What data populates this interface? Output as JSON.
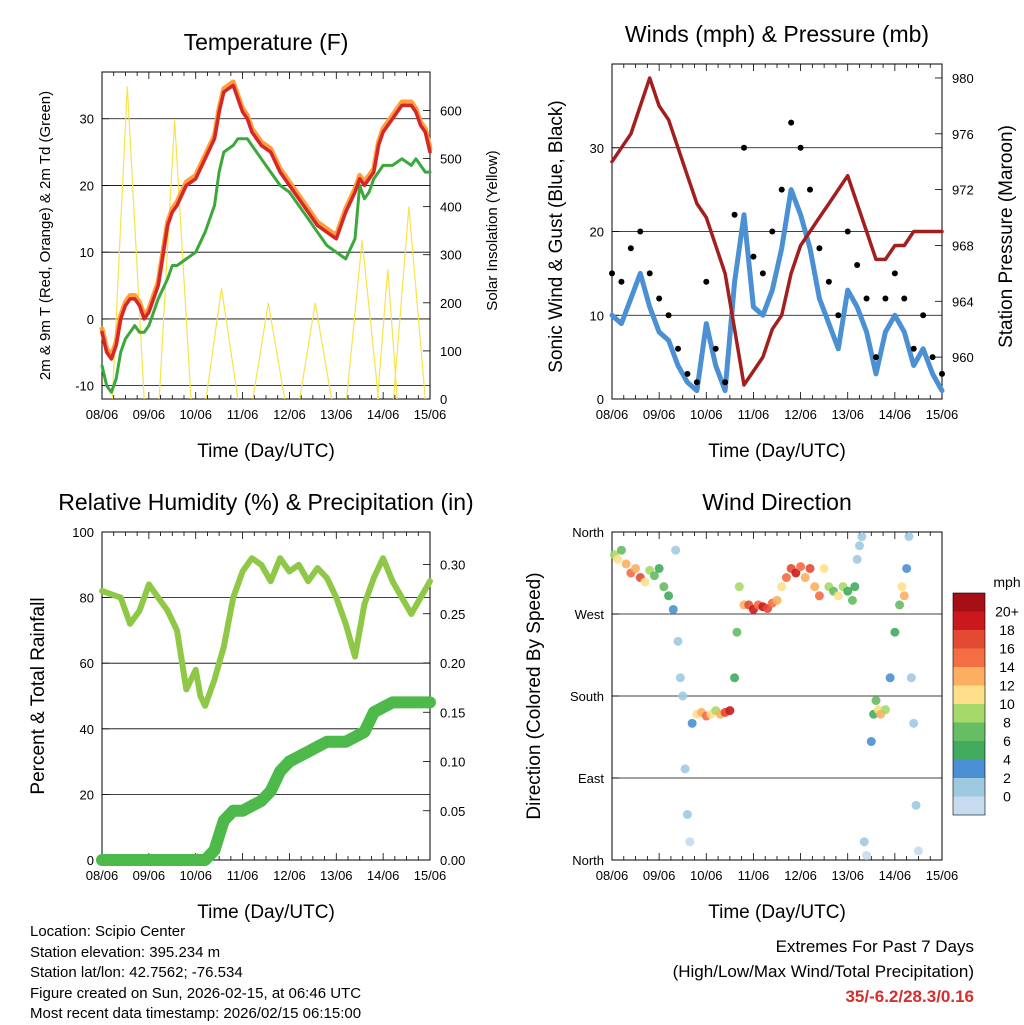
{
  "x_tick_labels": [
    "08/06",
    "09/06",
    "10/06",
    "11/06",
    "12/06",
    "13/06",
    "14/06",
    "15/06"
  ],
  "x_axis_label": "Time (Day/UTC)",
  "colors": {
    "temp_red": "#d62728",
    "temp_orange": "#ff9e3a",
    "dewpoint_green": "#3aa83a",
    "solar_yellow": "#f7e34a",
    "gust_black": "#000000",
    "wind_blue": "#4a90d2",
    "pressure_maroon": "#a31f1f",
    "rh_lightgreen": "#8fc846",
    "precip_green": "#4cb94a"
  },
  "chart_data": [
    {
      "id": "temperature",
      "type": "line",
      "title": "Temperature (F)",
      "xlabel": "Time (Day/UTC)",
      "ylabel": "2m & 9m T (Red, Orange) & 2m Td (Green)",
      "ylabel_right": "Solar Insolation (Yellow)",
      "ylim": [
        -12,
        37
      ],
      "yticks": [
        -10,
        0,
        10,
        20,
        30
      ],
      "ylim_right": [
        0,
        680
      ],
      "yticks_right": [
        0,
        100,
        200,
        300,
        400,
        500,
        600
      ],
      "x": [
        0,
        0.1,
        0.2,
        0.3,
        0.4,
        0.5,
        0.6,
        0.7,
        0.8,
        0.9,
        1.0,
        1.2,
        1.4,
        1.5,
        1.6,
        1.8,
        2.0,
        2.2,
        2.4,
        2.5,
        2.6,
        2.8,
        2.9,
        3.0,
        3.1,
        3.2,
        3.4,
        3.6,
        3.8,
        4.0,
        4.2,
        4.4,
        4.6,
        4.8,
        5.0,
        5.2,
        5.4,
        5.5,
        5.6,
        5.7,
        5.8,
        5.9,
        6.0,
        6.2,
        6.4,
        6.6,
        6.7,
        6.8,
        6.9,
        7.0
      ],
      "series": [
        {
          "name": "2m T",
          "color": "#d62728",
          "values": [
            -2,
            -5,
            -6,
            -4,
            0,
            2,
            3,
            3,
            2,
            0,
            1,
            5,
            14,
            16,
            17,
            20,
            21,
            24,
            27,
            31,
            34,
            35,
            33,
            31,
            30,
            28,
            26,
            25,
            22,
            20,
            18,
            16,
            14,
            13,
            12,
            16,
            19,
            21,
            20,
            21,
            22,
            26,
            28,
            30,
            32,
            32,
            31,
            29,
            28,
            25
          ]
        },
        {
          "name": "9m T",
          "color": "#ff9e3a",
          "values": [
            -1.5,
            -4.5,
            -5.5,
            -3.5,
            0.5,
            2.5,
            3.5,
            3.5,
            2.5,
            0.5,
            1.5,
            5.5,
            14.5,
            16.5,
            17.5,
            20.5,
            21.5,
            24.5,
            27.5,
            31.5,
            34.5,
            35.5,
            33.5,
            31.5,
            30.5,
            28.5,
            26.5,
            25.5,
            22.5,
            20.5,
            18.5,
            16.5,
            14.5,
            13.5,
            12.5,
            16.5,
            19.5,
            21.5,
            20.5,
            21.5,
            22.5,
            26.5,
            28.5,
            30.5,
            32.5,
            32.5,
            31.5,
            29.5,
            28.5,
            25.5
          ]
        },
        {
          "name": "2m Td",
          "color": "#3aa83a",
          "values": [
            -7,
            -10,
            -11,
            -9,
            -5,
            -3,
            -2,
            -1,
            -2,
            -2,
            -1,
            3,
            6,
            8,
            8,
            9,
            10,
            13,
            17,
            22,
            25,
            26,
            27,
            27,
            27,
            26,
            24,
            22,
            20,
            19,
            17,
            15,
            13,
            11,
            10,
            9,
            12,
            20,
            18,
            19,
            21,
            22,
            23,
            23,
            24,
            23,
            24,
            23,
            22,
            22
          ]
        }
      ],
      "solar": {
        "name": "Solar Insolation",
        "color": "#f7e34a",
        "days": [
          {
            "start": 0.22,
            "peak": 0.54,
            "end": 0.9,
            "value": 650
          },
          {
            "start": 1.22,
            "peak": 1.55,
            "end": 1.9,
            "value": 580
          },
          {
            "start": 2.22,
            "peak": 2.55,
            "end": 2.9,
            "value": 230
          },
          {
            "start": 3.22,
            "peak": 3.55,
            "end": 3.9,
            "value": 200
          },
          {
            "start": 4.22,
            "peak": 4.55,
            "end": 4.9,
            "value": 200
          },
          {
            "start": 5.22,
            "peak": 5.55,
            "end": 5.9,
            "value": 330
          },
          {
            "start": 5.88,
            "peak": 6.1,
            "end": 6.3,
            "value": 270
          },
          {
            "start": 6.22,
            "peak": 6.55,
            "end": 6.9,
            "value": 400
          }
        ]
      }
    },
    {
      "id": "winds",
      "type": "line",
      "title": "Winds (mph) & Pressure (mb)",
      "xlabel": "Time (Day/UTC)",
      "ylabel": "Sonic Wind & Gust (Blue, Black)",
      "ylabel_right": "Station Pressure (Maroon)",
      "ylim": [
        0,
        40
      ],
      "yticks": [
        0,
        10,
        20,
        30
      ],
      "ylim_right": [
        957,
        981
      ],
      "yticks_right": [
        960,
        964,
        968,
        972,
        976,
        980
      ],
      "x": [
        0,
        0.2,
        0.4,
        0.6,
        0.8,
        1.0,
        1.2,
        1.4,
        1.6,
        1.8,
        2.0,
        2.2,
        2.4,
        2.6,
        2.8,
        3.0,
        3.2,
        3.4,
        3.6,
        3.8,
        4.0,
        4.2,
        4.4,
        4.6,
        4.8,
        5.0,
        5.2,
        5.4,
        5.6,
        5.8,
        6.0,
        6.2,
        6.4,
        6.6,
        6.8,
        7.0
      ],
      "series": [
        {
          "name": "Gust",
          "color": "#000000",
          "values": [
            15,
            14,
            18,
            20,
            15,
            12,
            10,
            6,
            3,
            2,
            14,
            6,
            2,
            22,
            30,
            17,
            15,
            20,
            25,
            33,
            30,
            25,
            18,
            14,
            10,
            20,
            16,
            12,
            5,
            12,
            15,
            12,
            6,
            10,
            5,
            3
          ]
        },
        {
          "name": "Wind",
          "color": "#4a90d2",
          "values": [
            10,
            9,
            12,
            15,
            11,
            8,
            7,
            4,
            2,
            1,
            9,
            4,
            1,
            14,
            22,
            11,
            10,
            13,
            18,
            25,
            22,
            18,
            12,
            9,
            6,
            13,
            11,
            8,
            3,
            8,
            10,
            8,
            4,
            6,
            3,
            1
          ]
        },
        {
          "name": "Pressure",
          "color": "#a31f1f",
          "values": [
            974,
            975,
            976,
            978,
            980,
            978,
            977,
            975,
            973,
            971,
            970,
            968,
            966,
            962,
            958,
            959,
            960,
            962,
            963,
            966,
            968,
            969,
            970,
            971,
            972,
            973,
            971,
            969,
            967,
            967,
            968,
            968,
            969,
            969,
            969,
            969
          ]
        }
      ]
    },
    {
      "id": "humidity",
      "type": "line",
      "title": "Relative Humidity (%) & Precipitation (in)",
      "xlabel": "Time (Day/UTC)",
      "ylabel": "Percent & Total Rainfall",
      "ylim": [
        0,
        100
      ],
      "yticks": [
        0,
        20,
        40,
        60,
        80,
        100
      ],
      "ylim_right": [
        0,
        0.333
      ],
      "yticks_right": [
        0.0,
        0.05,
        0.1,
        0.15,
        0.2,
        0.25,
        0.3
      ],
      "yticklabels_right": [
        "0.00",
        "0.05",
        "0.10",
        "0.15",
        "0.20",
        "0.25",
        "0.30"
      ],
      "x": [
        0,
        0.2,
        0.4,
        0.6,
        0.8,
        1.0,
        1.2,
        1.4,
        1.6,
        1.8,
        2.0,
        2.1,
        2.2,
        2.4,
        2.5,
        2.6,
        2.8,
        3.0,
        3.2,
        3.4,
        3.6,
        3.8,
        4.0,
        4.2,
        4.4,
        4.6,
        4.8,
        5.0,
        5.2,
        5.4,
        5.6,
        5.8,
        6.0,
        6.2,
        6.4,
        6.6,
        6.8,
        7.0
      ],
      "series": [
        {
          "name": "RH",
          "color": "#8fc846",
          "values": [
            82,
            81,
            80,
            72,
            76,
            84,
            80,
            76,
            70,
            52,
            58,
            50,
            47,
            55,
            60,
            65,
            80,
            88,
            92,
            90,
            85,
            92,
            88,
            90,
            85,
            89,
            86,
            80,
            72,
            62,
            78,
            86,
            92,
            85,
            80,
            75,
            80,
            85
          ]
        },
        {
          "name": "Total Rainfall",
          "color": "#4cb94a",
          "values": [
            0,
            0,
            0,
            0,
            0,
            0,
            0,
            0,
            0,
            0,
            0,
            0,
            0,
            0.01,
            0.025,
            0.04,
            0.05,
            0.05,
            0.055,
            0.06,
            0.07,
            0.09,
            0.1,
            0.105,
            0.11,
            0.115,
            0.12,
            0.12,
            0.12,
            0.125,
            0.13,
            0.15,
            0.155,
            0.16,
            0.16,
            0.16,
            0.16,
            0.16
          ]
        }
      ]
    },
    {
      "id": "direction",
      "type": "scatter",
      "title": "Wind Direction",
      "xlabel": "Time (Day/UTC)",
      "ylabel": "Direction (Colored By Speed)",
      "ylim": [
        0,
        360
      ],
      "ytick_values": [
        0,
        90,
        180,
        270,
        360
      ],
      "yticklabels": [
        "North",
        "East",
        "South",
        "West",
        "North"
      ],
      "colorbar": {
        "title": "mph",
        "labels": [
          "20+",
          "18",
          "16",
          "14",
          "12",
          "10",
          "8",
          "6",
          "4",
          "2",
          "0"
        ],
        "colors": [
          "#a50f15",
          "#cb181d",
          "#e34a33",
          "#f46d43",
          "#fdae61",
          "#fee08b",
          "#a6d96a",
          "#66bd63",
          "#41ab5d",
          "#4a90d2",
          "#9ecae1",
          "#c6dbef"
        ]
      },
      "points": [
        {
          "x": 0.05,
          "dir": 335,
          "spd": 10
        },
        {
          "x": 0.12,
          "dir": 330,
          "spd": 12
        },
        {
          "x": 0.2,
          "dir": 340,
          "spd": 8
        },
        {
          "x": 0.3,
          "dir": 325,
          "spd": 14
        },
        {
          "x": 0.4,
          "dir": 315,
          "spd": 16
        },
        {
          "x": 0.5,
          "dir": 320,
          "spd": 14
        },
        {
          "x": 0.6,
          "dir": 310,
          "spd": 18
        },
        {
          "x": 0.7,
          "dir": 305,
          "spd": 12
        },
        {
          "x": 0.8,
          "dir": 318,
          "spd": 10
        },
        {
          "x": 0.9,
          "dir": 312,
          "spd": 8
        },
        {
          "x": 1.0,
          "dir": 320,
          "spd": 6
        },
        {
          "x": 1.1,
          "dir": 300,
          "spd": 8
        },
        {
          "x": 1.2,
          "dir": 290,
          "spd": 6
        },
        {
          "x": 1.3,
          "dir": 275,
          "spd": 4
        },
        {
          "x": 1.35,
          "dir": 340,
          "spd": 2
        },
        {
          "x": 1.4,
          "dir": 240,
          "spd": 2
        },
        {
          "x": 1.45,
          "dir": 200,
          "spd": 2
        },
        {
          "x": 1.5,
          "dir": 180,
          "spd": 3
        },
        {
          "x": 1.55,
          "dir": 100,
          "spd": 2
        },
        {
          "x": 1.6,
          "dir": 50,
          "spd": 2
        },
        {
          "x": 1.65,
          "dir": 20,
          "spd": 1
        },
        {
          "x": 1.7,
          "dir": 150,
          "spd": 4
        },
        {
          "x": 1.8,
          "dir": 160,
          "spd": 12
        },
        {
          "x": 1.9,
          "dir": 162,
          "spd": 14
        },
        {
          "x": 2.0,
          "dir": 158,
          "spd": 16
        },
        {
          "x": 2.1,
          "dir": 160,
          "spd": 12
        },
        {
          "x": 2.2,
          "dir": 164,
          "spd": 10
        },
        {
          "x": 2.3,
          "dir": 160,
          "spd": 14
        },
        {
          "x": 2.4,
          "dir": 162,
          "spd": 18
        },
        {
          "x": 2.5,
          "dir": 164,
          "spd": 20
        },
        {
          "x": 2.6,
          "dir": 200,
          "spd": 6
        },
        {
          "x": 2.65,
          "dir": 250,
          "spd": 8
        },
        {
          "x": 2.7,
          "dir": 300,
          "spd": 10
        },
        {
          "x": 2.8,
          "dir": 280,
          "spd": 14
        },
        {
          "x": 2.9,
          "dir": 280,
          "spd": 18
        },
        {
          "x": 3.0,
          "dir": 275,
          "spd": 20
        },
        {
          "x": 3.1,
          "dir": 280,
          "spd": 16
        },
        {
          "x": 3.2,
          "dir": 278,
          "spd": 20
        },
        {
          "x": 3.3,
          "dir": 276,
          "spd": 18
        },
        {
          "x": 3.4,
          "dir": 282,
          "spd": 16
        },
        {
          "x": 3.5,
          "dir": 285,
          "spd": 14
        },
        {
          "x": 3.6,
          "dir": 300,
          "spd": 12
        },
        {
          "x": 3.7,
          "dir": 310,
          "spd": 16
        },
        {
          "x": 3.8,
          "dir": 320,
          "spd": 18
        },
        {
          "x": 3.9,
          "dir": 315,
          "spd": 20
        },
        {
          "x": 4.0,
          "dir": 322,
          "spd": 16
        },
        {
          "x": 4.1,
          "dir": 310,
          "spd": 14
        },
        {
          "x": 4.2,
          "dir": 320,
          "spd": 18
        },
        {
          "x": 4.3,
          "dir": 300,
          "spd": 14
        },
        {
          "x": 4.4,
          "dir": 290,
          "spd": 16
        },
        {
          "x": 4.5,
          "dir": 320,
          "spd": 12
        },
        {
          "x": 4.6,
          "dir": 300,
          "spd": 10
        },
        {
          "x": 4.7,
          "dir": 295,
          "spd": 8
        },
        {
          "x": 4.8,
          "dir": 290,
          "spd": 12
        },
        {
          "x": 4.9,
          "dir": 300,
          "spd": 10
        },
        {
          "x": 5.0,
          "dir": 295,
          "spd": 6
        },
        {
          "x": 5.1,
          "dir": 285,
          "spd": 8
        },
        {
          "x": 5.15,
          "dir": 300,
          "spd": 6
        },
        {
          "x": 5.2,
          "dir": 330,
          "spd": 3
        },
        {
          "x": 5.25,
          "dir": 345,
          "spd": 2
        },
        {
          "x": 5.3,
          "dir": 355,
          "spd": 2
        },
        {
          "x": 5.35,
          "dir": 20,
          "spd": 2
        },
        {
          "x": 5.4,
          "dir": 5,
          "spd": 1
        },
        {
          "x": 5.5,
          "dir": 130,
          "spd": 4
        },
        {
          "x": 5.55,
          "dir": 160,
          "spd": 6
        },
        {
          "x": 5.6,
          "dir": 175,
          "spd": 8
        },
        {
          "x": 5.65,
          "dir": 165,
          "spd": 12
        },
        {
          "x": 5.7,
          "dir": 160,
          "spd": 14
        },
        {
          "x": 5.8,
          "dir": 165,
          "spd": 10
        },
        {
          "x": 5.9,
          "dir": 200,
          "spd": 4
        },
        {
          "x": 6.0,
          "dir": 250,
          "spd": 6
        },
        {
          "x": 6.1,
          "dir": 280,
          "spd": 8
        },
        {
          "x": 6.15,
          "dir": 300,
          "spd": 12
        },
        {
          "x": 6.2,
          "dir": 290,
          "spd": 14
        },
        {
          "x": 6.25,
          "dir": 320,
          "spd": 4
        },
        {
          "x": 6.3,
          "dir": 355,
          "spd": 2
        },
        {
          "x": 6.35,
          "dir": 200,
          "spd": 2
        },
        {
          "x": 6.4,
          "dir": 150,
          "spd": 3
        },
        {
          "x": 6.45,
          "dir": 60,
          "spd": 2
        },
        {
          "x": 6.5,
          "dir": 10,
          "spd": 1
        }
      ]
    }
  ],
  "footer": {
    "location": "Location: Scipio Center",
    "elevation": "Station elevation: 395.234 m",
    "latlon": "Station lat/lon: 42.7562; -76.534",
    "created": "Figure created on Sun, 2026-02-15, at 06:46 UTC",
    "recent": "Most recent data timestamp: 2026/02/15 06:15:00",
    "extremes_title": "Extremes For Past 7 Days",
    "extremes_sub": "(High/Low/Max Wind/Total Precipitation)",
    "extremes_values": "35/-6.2/28.3/0.16"
  }
}
